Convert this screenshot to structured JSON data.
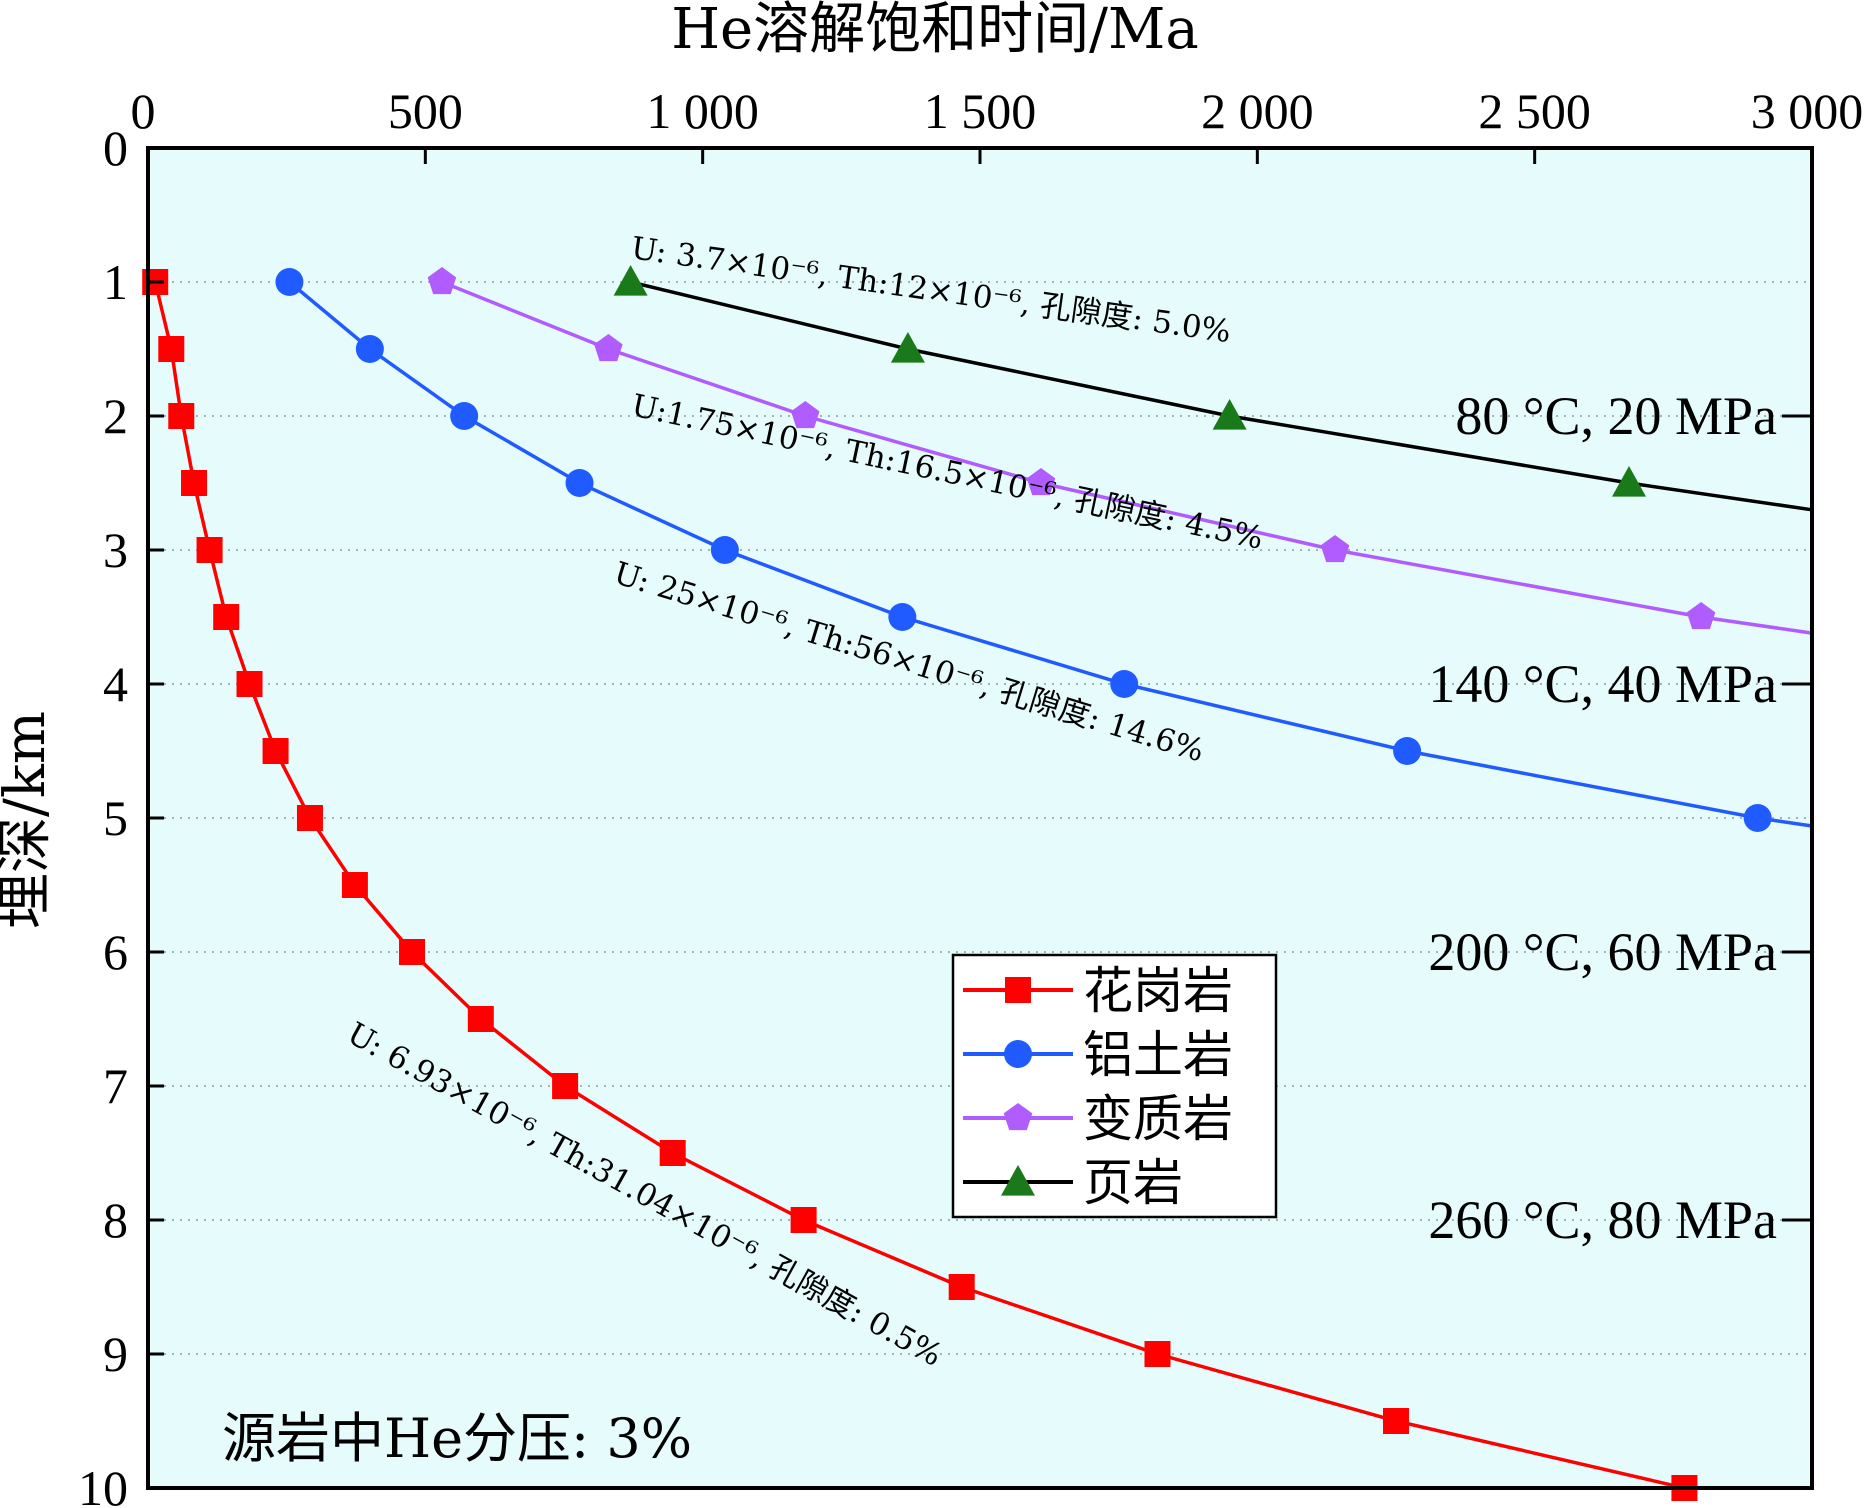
{
  "chart_data": {
    "type": "line",
    "xlabel": "He溶解饱和时间/Ma",
    "ylabel": "埋深/km",
    "xlim": [
      0,
      3000
    ],
    "ylim": [
      0,
      10
    ],
    "x_axis_position": "top",
    "y_axis_inverted": true,
    "x_ticks": [
      {
        "value": 0,
        "label": "0"
      },
      {
        "value": 500,
        "label": "500"
      },
      {
        "value": 1000,
        "label": "1 000"
      },
      {
        "value": 1500,
        "label": "1 500"
      },
      {
        "value": 2000,
        "label": "2 000"
      },
      {
        "value": 2500,
        "label": "2 500"
      },
      {
        "value": 3000,
        "label": "3 000"
      }
    ],
    "y_ticks": [
      {
        "value": 0,
        "label": "0"
      },
      {
        "value": 1,
        "label": "1"
      },
      {
        "value": 2,
        "label": "2"
      },
      {
        "value": 3,
        "label": "3"
      },
      {
        "value": 4,
        "label": "4"
      },
      {
        "value": 5,
        "label": "5"
      },
      {
        "value": 6,
        "label": "6"
      },
      {
        "value": 7,
        "label": "7"
      },
      {
        "value": 8,
        "label": "8"
      },
      {
        "value": 9,
        "label": "9"
      },
      {
        "value": 10,
        "label": "10"
      }
    ],
    "grid": "horizontal dotted",
    "legend_position": "center-right",
    "background_color": "#e6fbfb",
    "series": [
      {
        "name": "花岗岩",
        "color": "#ff0000",
        "marker": "square",
        "x": [
          13,
          42,
          60,
          83,
          111,
          141,
          183,
          230,
          292,
          373,
          476,
          600,
          752,
          946,
          1182,
          1467,
          1820,
          2250,
          2770
        ],
        "y": [
          1,
          1.5,
          2,
          2.5,
          3,
          3.5,
          4,
          4.5,
          5,
          5.5,
          6,
          6.5,
          7,
          7.5,
          8,
          8.5,
          9,
          9.5,
          10
        ],
        "annotation": "U: 6.93×10⁻⁶, Th:31.04×10⁻⁶, 孔隙度: 0.5%"
      },
      {
        "name": "铝土岩",
        "color": "#1f5bff",
        "marker": "circle",
        "x": [
          255,
          400,
          570,
          778,
          1040,
          1360,
          1760,
          2270,
          2902
        ],
        "y": [
          1,
          1.5,
          2,
          2.5,
          3,
          3.5,
          4,
          4.5,
          5
        ],
        "x_line_end": 3000,
        "y_line_end": 5.06,
        "annotation": "U: 25×10⁻⁶, Th:56×10⁻⁶, 孔隙度: 14.6%"
      },
      {
        "name": "变质岩",
        "color": "#b15cff",
        "marker": "pentagon",
        "x": [
          530,
          830,
          1185,
          1610,
          2140,
          2800
        ],
        "y": [
          1,
          1.5,
          2,
          2.5,
          3,
          3.5
        ],
        "x_line_end": 3000,
        "y_line_end": 3.62,
        "annotation": "U:1.75×10⁻⁶, Th:16.5×10⁻⁶, 孔隙度: 4.5%"
      },
      {
        "name": "页岩",
        "color": "#000000",
        "marker_color": "#1a7a1a",
        "marker": "triangle",
        "x": [
          870,
          1370,
          1950,
          2670
        ],
        "y": [
          1,
          1.5,
          2,
          2.5
        ],
        "x_line_end": 3000,
        "y_line_end": 2.7,
        "annotation": "U: 3.7×10⁻⁶, Th:12×10⁻⁶, 孔隙度: 5.0%"
      }
    ],
    "conditions": [
      {
        "label": "80 °C, 20 MPa",
        "depth": 2
      },
      {
        "label": "140 °C, 40 MPa",
        "depth": 4
      },
      {
        "label": "200 °C, 60  MPa",
        "depth": 6
      },
      {
        "label": "260 °C, 80 MPa",
        "depth": 8
      }
    ],
    "note": "源岩中He分压: 3%"
  }
}
